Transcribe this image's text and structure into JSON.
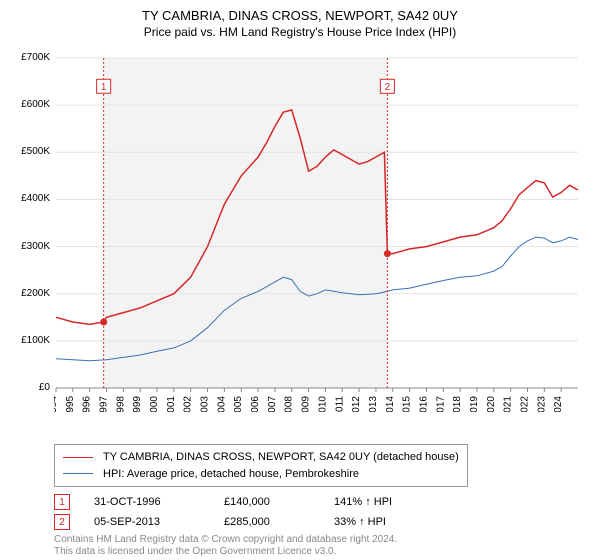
{
  "title": "TY CAMBRIA, DINAS CROSS, NEWPORT, SA42 0UY",
  "subtitle": "Price paid vs. HM Land Registry's House Price Index (HPI)",
  "chart": {
    "type": "line",
    "background_color": "#ffffff",
    "plot_band_color": "#f3f3f3",
    "grid_color": "#e3e3e3",
    "axis_color": "#888888",
    "x_years": [
      1994,
      1995,
      1996,
      1997,
      1998,
      1999,
      2000,
      2001,
      2002,
      2003,
      2004,
      2005,
      2006,
      2007,
      2008,
      2009,
      2010,
      2011,
      2012,
      2013,
      2014,
      2015,
      2016,
      2017,
      2018,
      2019,
      2020,
      2021,
      2022,
      2023,
      2024
    ],
    "x_min": 1994,
    "x_max": 2025,
    "y_min": 0,
    "y_max": 700000,
    "y_tick_step": 100000,
    "y_tick_labels": [
      "£0",
      "£100K",
      "£200K",
      "£300K",
      "£400K",
      "£500K",
      "£600K",
      "£700K"
    ],
    "axis_fontsize": 10,
    "series": [
      {
        "id": "property",
        "label": "TY CAMBRIA, DINAS CROSS, NEWPORT, SA42 0UY (detached house)",
        "color": "#d62728",
        "width": 1.5,
        "data": [
          [
            1994,
            150000
          ],
          [
            1995,
            140000
          ],
          [
            1996,
            135000
          ],
          [
            1996.83,
            140000
          ],
          [
            1997,
            150000
          ],
          [
            1998,
            160000
          ],
          [
            1999,
            170000
          ],
          [
            2000,
            185000
          ],
          [
            2001,
            200000
          ],
          [
            2002,
            235000
          ],
          [
            2003,
            300000
          ],
          [
            2004,
            390000
          ],
          [
            2005,
            450000
          ],
          [
            2006,
            490000
          ],
          [
            2006.5,
            520000
          ],
          [
            2007,
            555000
          ],
          [
            2007.5,
            585000
          ],
          [
            2008,
            590000
          ],
          [
            2008.5,
            530000
          ],
          [
            2009,
            460000
          ],
          [
            2009.5,
            470000
          ],
          [
            2010,
            490000
          ],
          [
            2010.5,
            505000
          ],
          [
            2011,
            495000
          ],
          [
            2011.5,
            485000
          ],
          [
            2012,
            475000
          ],
          [
            2012.5,
            480000
          ],
          [
            2013,
            490000
          ],
          [
            2013.5,
            500000
          ],
          [
            2013.68,
            285000
          ],
          [
            2014,
            285000
          ],
          [
            2014.5,
            290000
          ],
          [
            2015,
            295000
          ],
          [
            2016,
            300000
          ],
          [
            2017,
            310000
          ],
          [
            2018,
            320000
          ],
          [
            2019,
            325000
          ],
          [
            2020,
            340000
          ],
          [
            2020.5,
            355000
          ],
          [
            2021,
            380000
          ],
          [
            2021.5,
            410000
          ],
          [
            2022,
            425000
          ],
          [
            2022.5,
            440000
          ],
          [
            2023,
            435000
          ],
          [
            2023.5,
            405000
          ],
          [
            2024,
            415000
          ],
          [
            2024.5,
            430000
          ],
          [
            2025,
            420000
          ]
        ]
      },
      {
        "id": "hpi",
        "label": "HPI: Average price, detached house, Pembrokeshire",
        "color": "#3b6fb6",
        "width": 1,
        "data": [
          [
            1994,
            62000
          ],
          [
            1995,
            60000
          ],
          [
            1996,
            58000
          ],
          [
            1997,
            60000
          ],
          [
            1998,
            65000
          ],
          [
            1999,
            70000
          ],
          [
            2000,
            78000
          ],
          [
            2001,
            85000
          ],
          [
            2002,
            100000
          ],
          [
            2003,
            128000
          ],
          [
            2004,
            165000
          ],
          [
            2005,
            190000
          ],
          [
            2006,
            205000
          ],
          [
            2007,
            225000
          ],
          [
            2007.5,
            235000
          ],
          [
            2008,
            230000
          ],
          [
            2008.5,
            205000
          ],
          [
            2009,
            195000
          ],
          [
            2009.5,
            200000
          ],
          [
            2010,
            208000
          ],
          [
            2011,
            202000
          ],
          [
            2012,
            198000
          ],
          [
            2013,
            200000
          ],
          [
            2013.68,
            205000
          ],
          [
            2014,
            208000
          ],
          [
            2015,
            212000
          ],
          [
            2016,
            220000
          ],
          [
            2017,
            228000
          ],
          [
            2018,
            235000
          ],
          [
            2019,
            238000
          ],
          [
            2020,
            248000
          ],
          [
            2020.5,
            258000
          ],
          [
            2021,
            280000
          ],
          [
            2021.5,
            300000
          ],
          [
            2022,
            312000
          ],
          [
            2022.5,
            320000
          ],
          [
            2023,
            318000
          ],
          [
            2023.5,
            308000
          ],
          [
            2024,
            312000
          ],
          [
            2024.5,
            320000
          ],
          [
            2025,
            315000
          ]
        ]
      }
    ],
    "sale_markers": [
      {
        "n": "1",
        "x": 1996.83,
        "y": 140000,
        "label_y": 640000,
        "color": "#d62728"
      },
      {
        "n": "2",
        "x": 2013.68,
        "y": 285000,
        "label_y": 640000,
        "color": "#d62728"
      }
    ]
  },
  "legend": {
    "items": [
      {
        "color": "#d62728",
        "label": "TY CAMBRIA, DINAS CROSS, NEWPORT, SA42 0UY (detached house)"
      },
      {
        "color": "#3b6fb6",
        "label": "HPI: Average price, detached house, Pembrokeshire"
      }
    ]
  },
  "sales": [
    {
      "n": "1",
      "color": "#d62728",
      "date": "31-OCT-1996",
      "price": "£140,000",
      "delta": "141% ↑ HPI"
    },
    {
      "n": "2",
      "color": "#d62728",
      "date": "05-SEP-2013",
      "price": "£285,000",
      "delta": "33% ↑ HPI"
    }
  ],
  "footer": {
    "line1": "Contains HM Land Registry data © Crown copyright and database right 2024.",
    "line2": "This data is licensed under the Open Government Licence v3.0."
  }
}
